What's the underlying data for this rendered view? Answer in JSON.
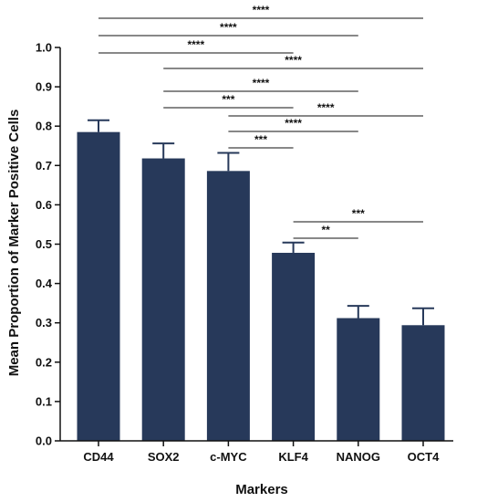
{
  "chart_data": {
    "type": "bar",
    "xlabel": "Markers",
    "ylabel": "Mean Proportion of Marker Positive Cells",
    "ylim": [
      0,
      1.0
    ],
    "yticks": [
      "0.0",
      "0.1",
      "0.2",
      "0.3",
      "0.4",
      "0.5",
      "0.6",
      "0.7",
      "0.8",
      "0.9",
      "1.0"
    ],
    "categories": [
      "CD44",
      "SOX2",
      "c-MYC",
      "KLF4",
      "NANOG",
      "OCT4"
    ],
    "values": [
      0.785,
      0.718,
      0.686,
      0.478,
      0.312,
      0.294
    ],
    "errors": [
      0.03,
      0.038,
      0.046,
      0.026,
      0.031,
      0.043
    ],
    "bar_color": "#27395a",
    "grid": false,
    "significance": [
      {
        "from": "CD44",
        "to": "OCT4",
        "label": "****"
      },
      {
        "from": "CD44",
        "to": "NANOG",
        "label": "****"
      },
      {
        "from": "CD44",
        "to": "KLF4",
        "label": "****"
      },
      {
        "from": "SOX2",
        "to": "OCT4",
        "label": "****"
      },
      {
        "from": "SOX2",
        "to": "NANOG",
        "label": "****"
      },
      {
        "from": "SOX2",
        "to": "KLF4",
        "label": "***"
      },
      {
        "from": "c-MYC",
        "to": "OCT4",
        "label": "****"
      },
      {
        "from": "c-MYC",
        "to": "NANOG",
        "label": "****"
      },
      {
        "from": "c-MYC",
        "to": "KLF4",
        "label": "***"
      },
      {
        "from": "KLF4",
        "to": "OCT4",
        "label": "***"
      },
      {
        "from": "KLF4",
        "to": "NANOG",
        "label": "**"
      }
    ]
  }
}
